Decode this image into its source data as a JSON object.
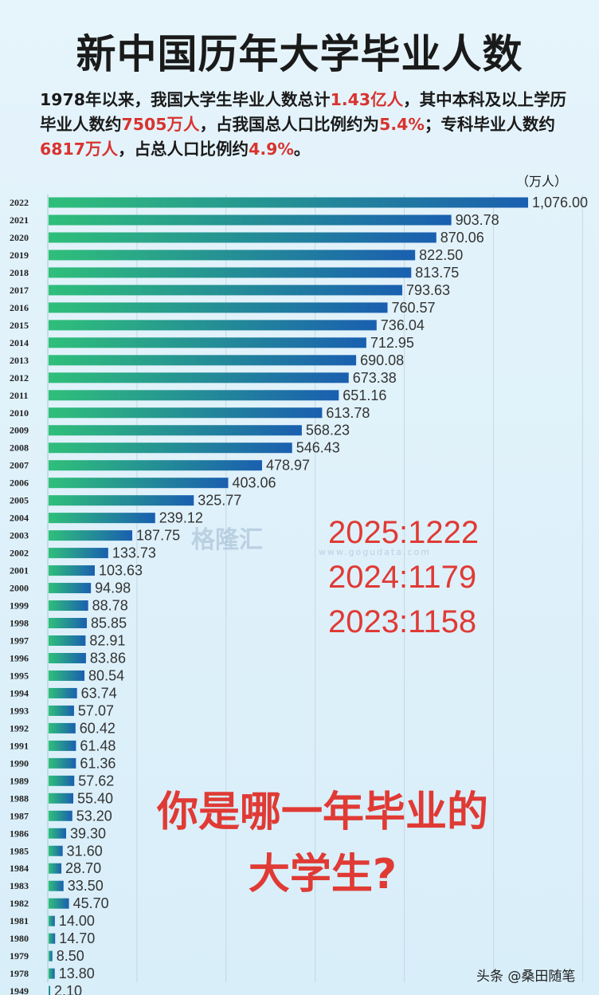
{
  "title": "新中国历年大学毕业人数",
  "intro": {
    "p1": "1978年以来，我国大学生毕业人数总计",
    "r1": "1.43亿人",
    "p2": "，其中本科及以上学历毕业人数约",
    "r2": "7505万人",
    "p3": "，占我国总人口比例约为",
    "r3": "5.4%",
    "p4": "；专科毕业人数约",
    "r4": "6817万人",
    "p5": "，占总人口比例约",
    "r5": "4.9%",
    "p6": "。"
  },
  "watermark": {
    "brand": "格隆汇",
    "site_text": "格隆汇数据",
    "site_url": "www.gogudata.com"
  },
  "annotations": [
    "2025:1222",
    "2024:1179",
    "2023:1158"
  ],
  "question": {
    "line1": "你是哪一年毕业的",
    "line2": "大学生?"
  },
  "credit": "头条 @桑田随笔",
  "colors": {
    "bar_start": "#2fbf7a",
    "bar_end": "#1a5fb0",
    "highlight": "#e03a35",
    "background": "#dcf0fa"
  },
  "chart_data": {
    "type": "bar",
    "orientation": "horizontal",
    "unit": "（万人）",
    "xlim": [
      0,
      1200
    ],
    "grid": true,
    "categories": [
      "2022",
      "2021",
      "2020",
      "2019",
      "2018",
      "2017",
      "2016",
      "2015",
      "2014",
      "2013",
      "2012",
      "2011",
      "2010",
      "2009",
      "2008",
      "2007",
      "2006",
      "2005",
      "2004",
      "2003",
      "2002",
      "2001",
      "2000",
      "1999",
      "1998",
      "1997",
      "1996",
      "1995",
      "1994",
      "1993",
      "1992",
      "1991",
      "1990",
      "1989",
      "1988",
      "1987",
      "1986",
      "1985",
      "1984",
      "1983",
      "1982",
      "1981",
      "1980",
      "1979",
      "1978",
      "1949"
    ],
    "values": [
      1076.0,
      903.78,
      870.06,
      822.5,
      813.75,
      793.63,
      760.57,
      736.04,
      712.95,
      690.08,
      673.38,
      651.16,
      613.78,
      568.23,
      546.43,
      478.97,
      403.06,
      325.77,
      239.12,
      187.75,
      133.73,
      103.63,
      94.98,
      88.78,
      85.85,
      82.91,
      83.86,
      80.54,
      63.74,
      57.07,
      60.42,
      61.48,
      61.36,
      57.62,
      55.4,
      53.2,
      39.3,
      31.6,
      28.7,
      33.5,
      45.7,
      14.0,
      14.7,
      8.5,
      13.8,
      2.1
    ],
    "labels": [
      "1,076.00",
      "903.78",
      "870.06",
      "822.50",
      "813.75",
      "793.63",
      "760.57",
      "736.04",
      "712.95",
      "690.08",
      "673.38",
      "651.16",
      "613.78",
      "568.23",
      "546.43",
      "478.97",
      "403.06",
      "325.77",
      "239.12",
      "187.75",
      "133.73",
      "103.63",
      "94.98",
      "88.78",
      "85.85",
      "82.91",
      "83.86",
      "80.54",
      "63.74",
      "57.07",
      "60.42",
      "61.48",
      "61.36",
      "57.62",
      "55.40",
      "53.20",
      "39.30",
      "31.60",
      "28.70",
      "33.50",
      "45.70",
      "14.00",
      "14.70",
      "8.50",
      "13.80",
      "2.10"
    ]
  }
}
